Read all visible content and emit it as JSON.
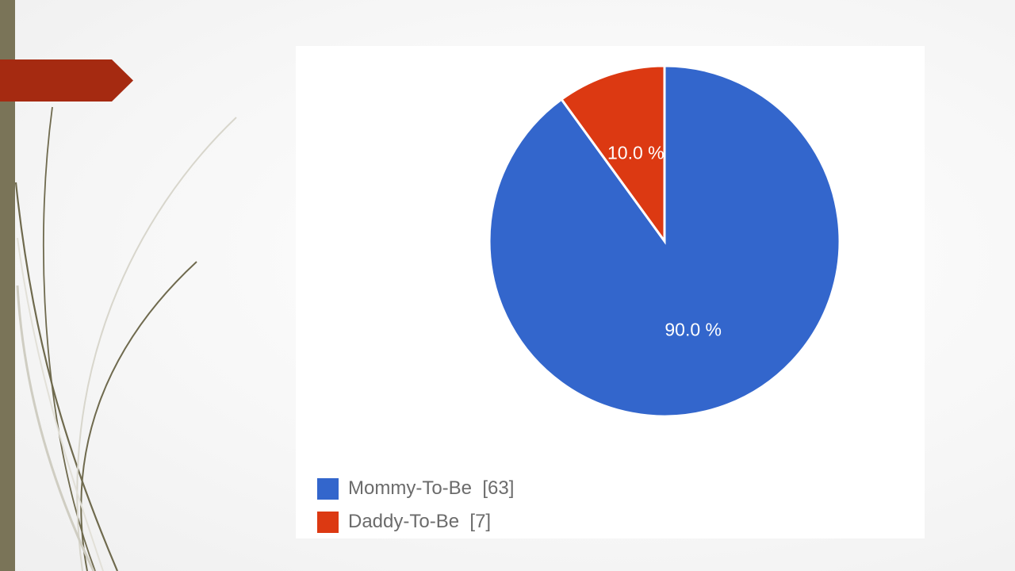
{
  "colors": {
    "left_bar": "#7a7458",
    "accent_tab": "#a52a11",
    "series_mommy": "#3366cc",
    "series_daddy": "#dc3912"
  },
  "chart_data": {
    "type": "pie",
    "slices": [
      {
        "label": "Mommy-To-Be",
        "count": 63,
        "percent": 90.0,
        "percent_label": "90.0 %",
        "color": "#3366cc"
      },
      {
        "label": "Daddy-To-Be",
        "count": 7,
        "percent": 10.0,
        "percent_label": "10.0 %",
        "color": "#dc3912"
      }
    ],
    "legend": [
      {
        "text": "Mommy-To-Be  [63]",
        "color": "#3366cc"
      },
      {
        "text": "Daddy-To-Be  [7]",
        "color": "#dc3912"
      }
    ],
    "legend_position": "bottom-left"
  }
}
